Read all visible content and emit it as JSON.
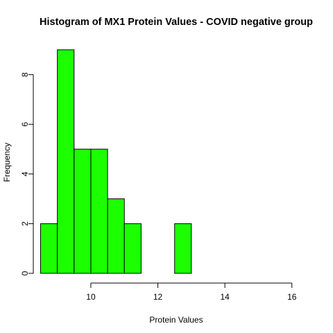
{
  "chart_data": {
    "type": "bar",
    "title": "Histogram of MX1 Protein Values - COVID negative group",
    "xlabel": "Protein Values",
    "ylabel": "Frequency",
    "bin_edges": [
      8.5,
      9,
      9.5,
      10,
      10.5,
      11,
      11.5,
      12,
      12.5,
      13
    ],
    "values": [
      2,
      9,
      5,
      5,
      3,
      2,
      0,
      0,
      2
    ],
    "xlim": [
      8.5,
      16
    ],
    "ylim": [
      0,
      9
    ],
    "x_ticks": [
      10,
      12,
      14,
      16
    ],
    "y_ticks": [
      0,
      2,
      4,
      6,
      8
    ],
    "bar_color": "#1cff00",
    "grid": false
  }
}
